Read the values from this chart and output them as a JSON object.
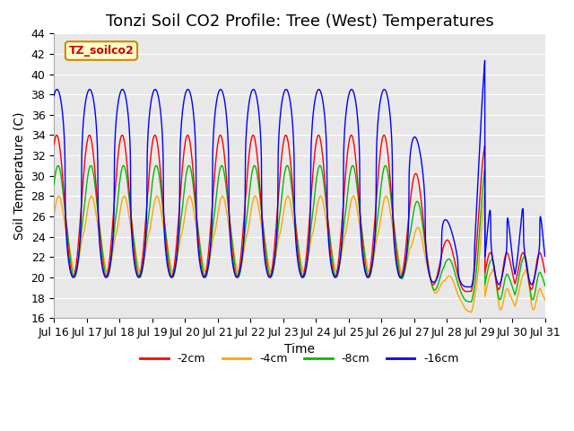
{
  "title": "Tonzi Soil CO2 Profile: Tree (West) Temperatures",
  "xlabel": "Time",
  "ylabel": "Soil Temperature (C)",
  "ylim": [
    16,
    44
  ],
  "xlim": [
    0,
    360
  ],
  "xtick_labels": [
    "Jul 16",
    "Jul 17",
    "Jul 18",
    "Jul 19",
    "Jul 20",
    "Jul 21",
    "Jul 22",
    "Jul 23",
    "Jul 24",
    "Jul 25",
    "Jul 26",
    "Jul 27",
    "Jul 28",
    "Jul 29",
    "Jul 30",
    "Jul 31"
  ],
  "ytick_vals": [
    16,
    18,
    20,
    22,
    24,
    26,
    28,
    30,
    32,
    34,
    36,
    38,
    40,
    42,
    44
  ],
  "series_labels": [
    "-2cm",
    "-4cm",
    "-8cm",
    "-16cm"
  ],
  "series_colors": [
    "#ff0000",
    "#ffa500",
    "#00bb00",
    "#0000ff"
  ],
  "legend_label": "TZ_soilco2",
  "legend_bg": "#ffffcc",
  "legend_edge": "#cc8800",
  "legend_text_color": "#cc0000",
  "bg_color": "#e8e8e8",
  "title_fontsize": 13,
  "axis_fontsize": 10,
  "tick_fontsize": 9,
  "figsize": [
    6.4,
    4.8
  ],
  "dpi": 100
}
